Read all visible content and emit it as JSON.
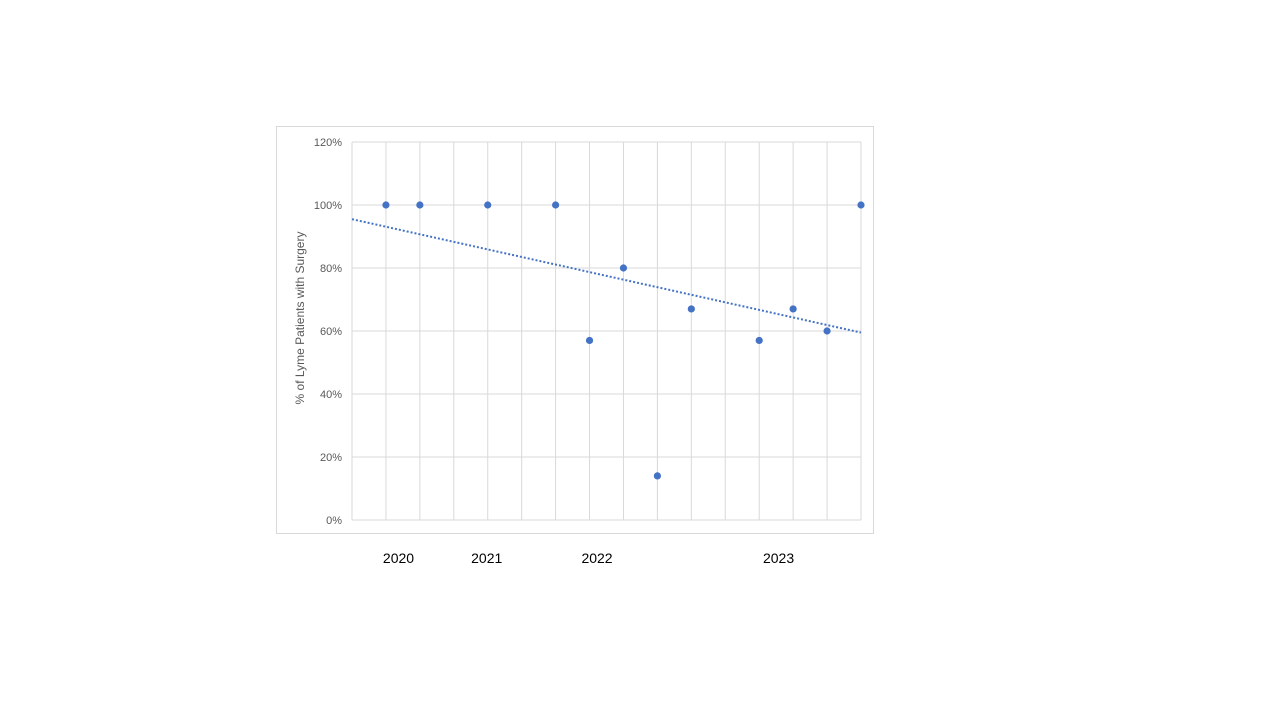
{
  "chart_data": {
    "type": "scatter",
    "ylabel": "% of Lyme Patients with Surgery",
    "ylim": [
      0,
      120
    ],
    "ytick_labels": [
      "0%",
      "20%",
      "40%",
      "60%",
      "80%",
      "100%",
      "120%"
    ],
    "x_slots": 15,
    "year_labels": [
      {
        "label": "2020",
        "slot": 1.4
      },
      {
        "label": "2021",
        "slot": 4.0
      },
      {
        "label": "2022",
        "slot": 7.25
      },
      {
        "label": "2023",
        "slot": 12.6
      }
    ],
    "series": [
      {
        "points": [
          {
            "slot": 1,
            "value": 100
          },
          {
            "slot": 2,
            "value": 100
          },
          {
            "slot": 4,
            "value": 100
          },
          {
            "slot": 6,
            "value": 100
          },
          {
            "slot": 7,
            "value": 57
          },
          {
            "slot": 8,
            "value": 80
          },
          {
            "slot": 9,
            "value": 14
          },
          {
            "slot": 10,
            "value": 67
          },
          {
            "slot": 12,
            "value": 57
          },
          {
            "slot": 13,
            "value": 67
          },
          {
            "slot": 14,
            "value": 60
          },
          {
            "slot": 15,
            "value": 100
          }
        ]
      }
    ],
    "trendline": {
      "type": "linear",
      "start_value": 95.5,
      "end_value": 59.5
    },
    "grid": true,
    "colors": {
      "points": "#4472c4",
      "trendline": "#4472c4",
      "grid": "#d9d9d9",
      "tick_text": "#595959"
    }
  }
}
